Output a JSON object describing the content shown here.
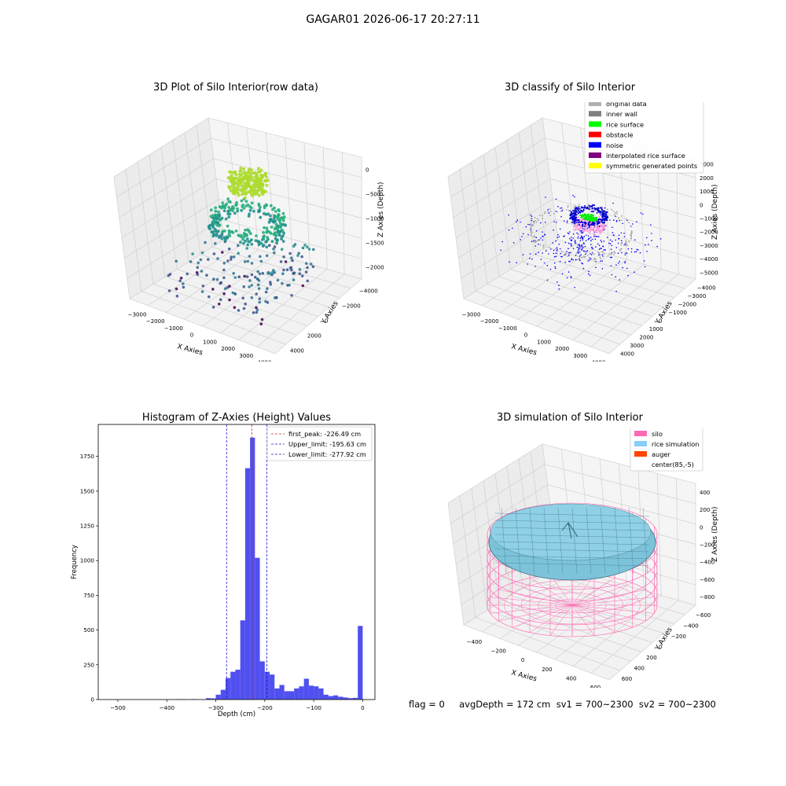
{
  "suptitle": "GAGAR01 2026-06-17 20:27:11",
  "status_line": "flag = 0     avgDepth = 172 cm  sv1 = 700~2300  sv2 = 700~2300",
  "colors": {
    "hist_bar": "#5050f0",
    "peak_line": "#e02020",
    "limit_line": "#1a1ad0",
    "silo": "#ff69b4",
    "rice": "#87cefa",
    "auger": "#ff4500"
  },
  "chart_data": [
    {
      "type": "scatter",
      "projection": "3d",
      "title": "3D Plot of Silo Interior(row data)",
      "xlabel": "X Axies",
      "ylabel": "Y Axies",
      "zlabel": "Z Axies (Depth)",
      "xticks": [
        "−3000",
        "−2000",
        "−1000",
        "0",
        "1000",
        "2000",
        "3000",
        "4000"
      ],
      "yticks": [
        "−4000",
        "−2000",
        "0",
        "2000",
        "4000"
      ],
      "zticks": [
        "−2000",
        "−1500",
        "−1000",
        "−500",
        "0"
      ],
      "xlim": [
        -3500,
        4500
      ],
      "ylim": [
        -4500,
        4500
      ],
      "zlim": [
        -2300,
        100
      ],
      "colormap": "viridis (depth)"
    },
    {
      "type": "scatter",
      "projection": "3d",
      "title": "3D classify of Silo Interior",
      "xlabel": "X Axies",
      "ylabel": "Y Axies",
      "zlabel": "Z Axies (Depth)",
      "xticks": [
        "−3000",
        "−2000",
        "−1000",
        "0",
        "1000",
        "2000",
        "3000",
        "4000"
      ],
      "yticks": [
        "−4000",
        "−3000",
        "−2000",
        "−1000",
        "0",
        "1000",
        "2000",
        "3000",
        "4000"
      ],
      "zticks": [
        "−5000",
        "−4000",
        "−3000",
        "−2000",
        "−1000",
        "0",
        "1000",
        "2000",
        "3000"
      ],
      "legend_position": "top-right",
      "legend": [
        {
          "label": "original data",
          "color": "#b0b0b0"
        },
        {
          "label": "inner wall",
          "color": "#808080"
        },
        {
          "label": "rice surface",
          "color": "#00ff00"
        },
        {
          "label": "obstacle",
          "color": "#ff0000"
        },
        {
          "label": "noise",
          "color": "#0000ff"
        },
        {
          "label": "interpolated rice surface",
          "color": "#800080"
        },
        {
          "label": "symmetric generated points",
          "color": "#ffff00"
        }
      ]
    },
    {
      "type": "bar",
      "title": "Histogram of Z-Axies (Height) Values",
      "xlabel": "Depth (cm)",
      "ylabel": "Frequency",
      "xlim": [
        -540,
        25
      ],
      "ylim": [
        0,
        1980
      ],
      "xticks": [
        -500,
        -400,
        -300,
        -200,
        -100,
        0
      ],
      "xtick_labels": [
        "−500",
        "−400",
        "−300",
        "−200",
        "−100",
        "0"
      ],
      "yticks": [
        0,
        250,
        500,
        750,
        1000,
        1250,
        1500,
        1750
      ],
      "bin_width": 10,
      "bins": [
        {
          "x": -380,
          "count": 3
        },
        {
          "x": -370,
          "count": 3
        },
        {
          "x": -350,
          "count": 3
        },
        {
          "x": -320,
          "count": 10
        },
        {
          "x": -310,
          "count": 8
        },
        {
          "x": -300,
          "count": 35
        },
        {
          "x": -290,
          "count": 70
        },
        {
          "x": -280,
          "count": 155
        },
        {
          "x": -270,
          "count": 200
        },
        {
          "x": -260,
          "count": 215
        },
        {
          "x": -250,
          "count": 570
        },
        {
          "x": -240,
          "count": 1665
        },
        {
          "x": -230,
          "count": 1885
        },
        {
          "x": -220,
          "count": 1020
        },
        {
          "x": -210,
          "count": 275
        },
        {
          "x": -200,
          "count": 200
        },
        {
          "x": -190,
          "count": 180
        },
        {
          "x": -180,
          "count": 80
        },
        {
          "x": -170,
          "count": 105
        },
        {
          "x": -160,
          "count": 60
        },
        {
          "x": -150,
          "count": 60
        },
        {
          "x": -140,
          "count": 80
        },
        {
          "x": -130,
          "count": 95
        },
        {
          "x": -120,
          "count": 150
        },
        {
          "x": -110,
          "count": 100
        },
        {
          "x": -100,
          "count": 95
        },
        {
          "x": -90,
          "count": 80
        },
        {
          "x": -80,
          "count": 35
        },
        {
          "x": -70,
          "count": 25
        },
        {
          "x": -60,
          "count": 30
        },
        {
          "x": -50,
          "count": 20
        },
        {
          "x": -40,
          "count": 15
        },
        {
          "x": -30,
          "count": 10
        },
        {
          "x": -20,
          "count": 12
        },
        {
          "x": -10,
          "count": 530
        }
      ],
      "vlines": [
        {
          "x": -226.49,
          "label": "first_peak: -226.49 cm",
          "style": "peak"
        },
        {
          "x": -195.63,
          "label": "Upper_limit: -195.63 cm",
          "style": "limit"
        },
        {
          "x": -277.92,
          "label": "Lower_limit: -277.92 cm",
          "style": "limit"
        }
      ],
      "legend_position": "top-right"
    },
    {
      "type": "surface",
      "projection": "3d",
      "title": "3D simulation of Silo Interior",
      "xlabel": "X Axies",
      "ylabel": "Y Axies",
      "zlabel": "Z Axies (Depth)",
      "xticks": [
        "−400",
        "−200",
        "0",
        "200",
        "400",
        "600"
      ],
      "yticks": [
        "−600",
        "−400",
        "−200",
        "0",
        "200",
        "400",
        "600"
      ],
      "zticks": [
        "−800",
        "−600",
        "−400",
        "−200",
        "0",
        "200",
        "400"
      ],
      "legend_position": "top-right",
      "legend": [
        {
          "label": "silo",
          "color": "#ff69b4"
        },
        {
          "label": "rice simulation",
          "color": "#87cefa"
        },
        {
          "label": "auger",
          "color": "#ff4500"
        },
        {
          "label": "center(85,-5)",
          "color": "none"
        }
      ]
    }
  ]
}
